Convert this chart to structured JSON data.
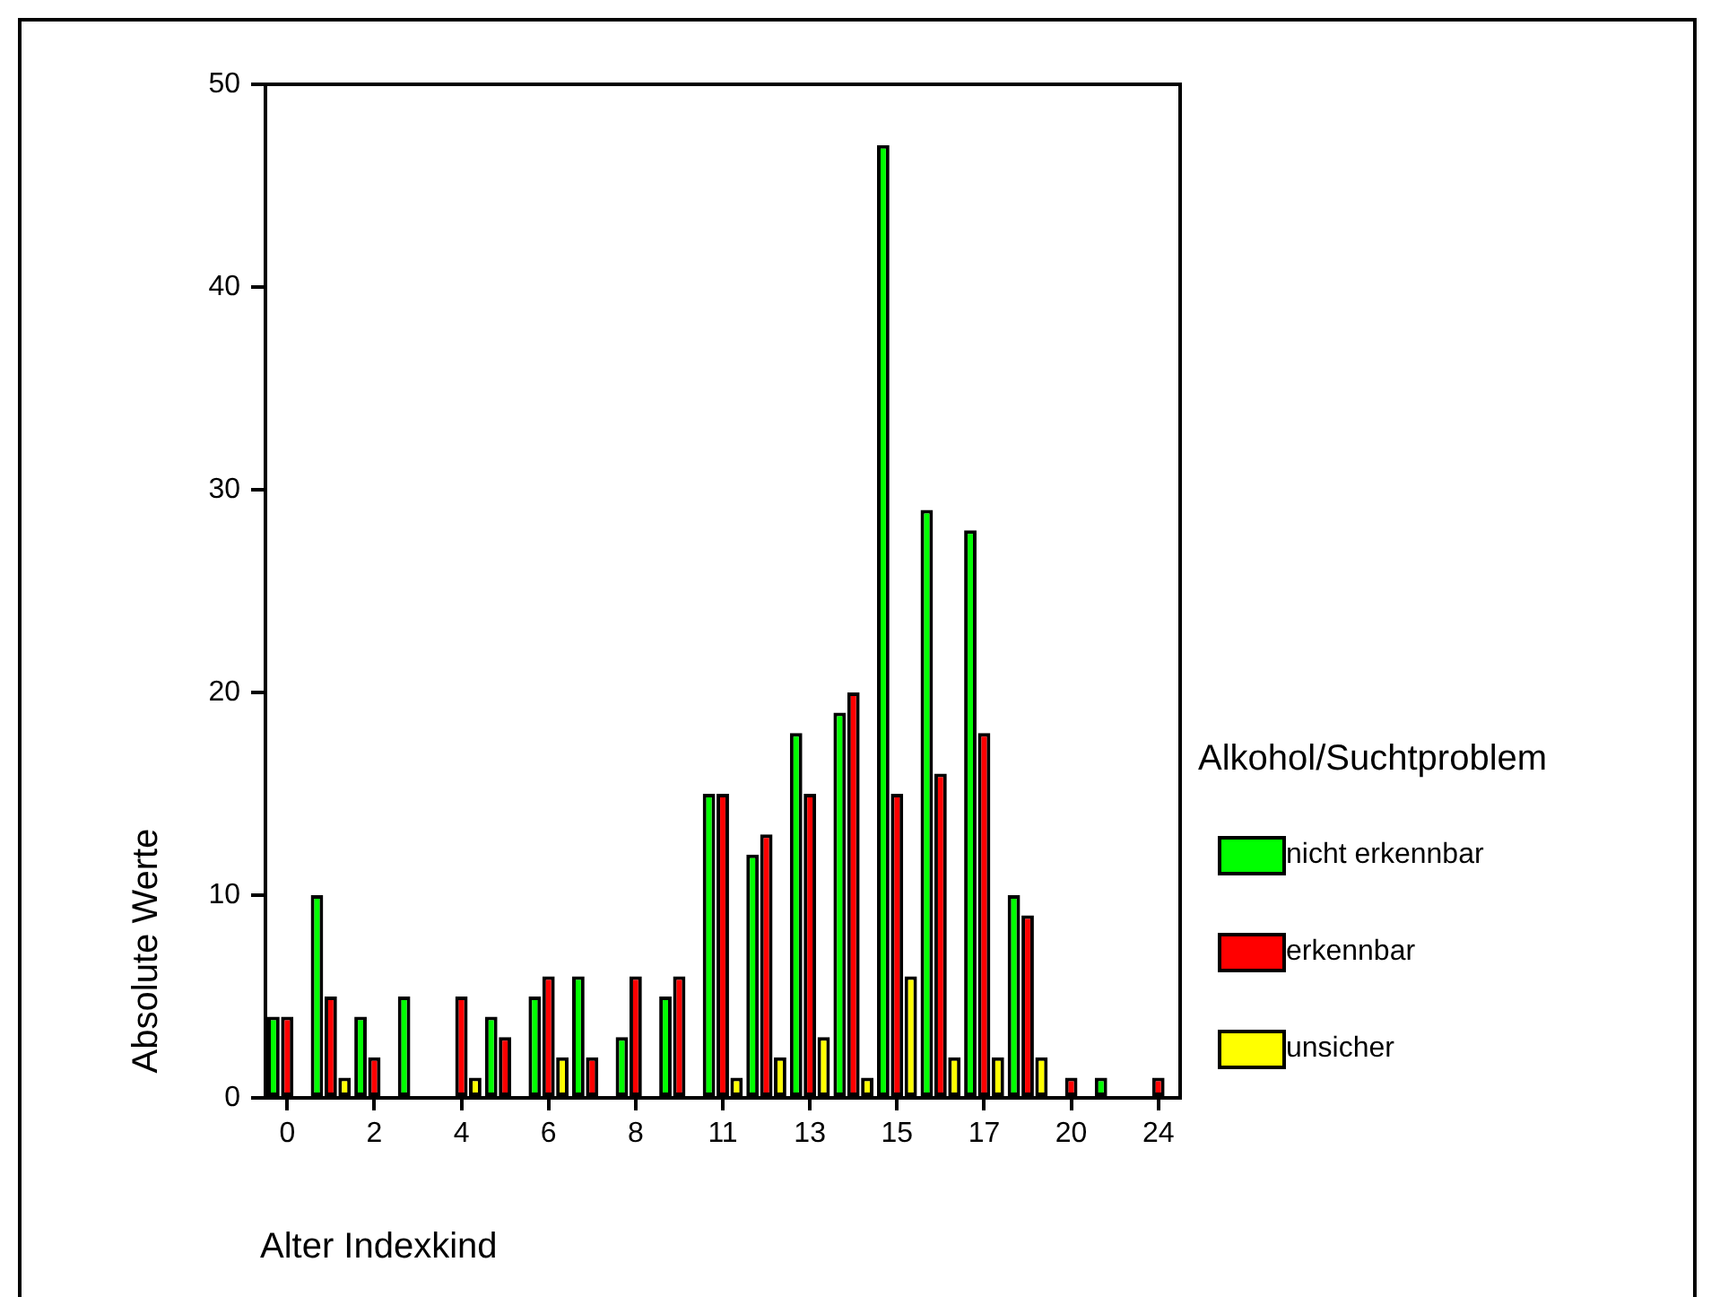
{
  "chart_data": {
    "type": "bar",
    "xlabel": "Alter Indexkind",
    "ylabel": "Absolute Werte",
    "legend_title": "Alkohol/Suchtproblem",
    "categories": [
      "0",
      null,
      "2",
      null,
      "4",
      null,
      "6",
      null,
      "8",
      null,
      "11",
      null,
      "13",
      null,
      "15",
      null,
      "17",
      null,
      "20",
      null,
      "24"
    ],
    "series": [
      {
        "name": "nicht erkennbar",
        "color": "#00ff00",
        "values": [
          4,
          10,
          4,
          5,
          0,
          4,
          5,
          6,
          3,
          5,
          15,
          12,
          18,
          19,
          47,
          29,
          28,
          10,
          0,
          1,
          0
        ]
      },
      {
        "name": "erkennbar",
        "color": "#ff0000",
        "values": [
          4,
          5,
          2,
          0,
          5,
          3,
          6,
          2,
          6,
          6,
          15,
          13,
          15,
          20,
          15,
          16,
          18,
          9,
          1,
          0,
          1
        ]
      },
      {
        "name": "unsicher",
        "color": "#ffff00",
        "values": [
          0,
          1,
          0,
          0,
          1,
          0,
          2,
          0,
          0,
          0,
          1,
          2,
          3,
          1,
          6,
          2,
          2,
          2,
          0,
          0,
          0
        ]
      }
    ],
    "ylim": [
      0,
      50
    ],
    "yticks": [
      0,
      10,
      20,
      30,
      40,
      50
    ],
    "grid": false,
    "legend": "right"
  }
}
